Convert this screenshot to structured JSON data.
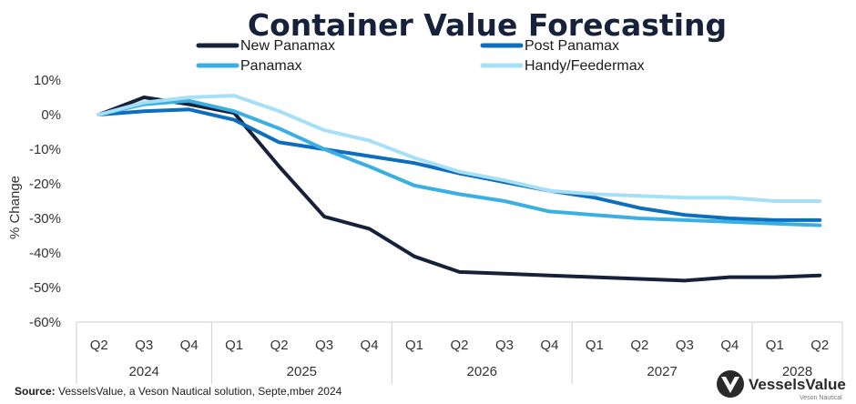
{
  "chart_data": {
    "type": "line",
    "title": "Container Value Forecasting",
    "ylabel": "% Change",
    "xlabel": "",
    "ylim": [
      -60,
      10
    ],
    "yticks": [
      10,
      0,
      -10,
      -20,
      -30,
      -40,
      -50,
      -60
    ],
    "y_tick_labels": [
      "10%",
      "0%",
      "-10%",
      "-20%",
      "-30%",
      "-40%",
      "-50%",
      "-60%"
    ],
    "categories": [
      "Q2",
      "Q3",
      "Q4",
      "Q1",
      "Q2",
      "Q3",
      "Q4",
      "Q1",
      "Q2",
      "Q3",
      "Q4",
      "Q1",
      "Q2",
      "Q3",
      "Q4",
      "Q1",
      "Q2"
    ],
    "years": [
      {
        "label": "2024",
        "start": 0,
        "end": 2
      },
      {
        "label": "2025",
        "start": 3,
        "end": 6
      },
      {
        "label": "2026",
        "start": 7,
        "end": 10
      },
      {
        "label": "2027",
        "start": 11,
        "end": 14
      },
      {
        "label": "2028",
        "start": 15,
        "end": 16
      }
    ],
    "legend_position": "top",
    "grid": false,
    "series": [
      {
        "name": "New Panamax",
        "color": "#16213a",
        "values": [
          0,
          5,
          3,
          0.5,
          -15,
          -29.5,
          -33,
          -41,
          -45.5,
          -46,
          -46.5,
          -47,
          -47.5,
          -48,
          -47,
          -47,
          -46.5
        ]
      },
      {
        "name": "Post Panamax",
        "color": "#0c6ebd",
        "values": [
          0,
          1,
          1.5,
          -1.5,
          -8,
          -10,
          -12,
          -14,
          -17,
          -19.5,
          -22,
          -24,
          -27,
          -29,
          -30,
          -30.5,
          -30.5
        ]
      },
      {
        "name": "Panamax",
        "color": "#3ab0e2",
        "values": [
          0,
          3,
          4,
          1,
          -4,
          -10,
          -15,
          -20.5,
          -23,
          -25,
          -28,
          -29,
          -30,
          -30.5,
          -31,
          -31.5,
          -32
        ]
      },
      {
        "name": "Handy/Feedermax",
        "color": "#a6e0f7",
        "values": [
          0,
          3.5,
          5,
          5.5,
          1,
          -4.5,
          -7.5,
          -12.5,
          -16.5,
          -19,
          -22,
          -23,
          -23.5,
          -24,
          -24,
          -25,
          -25
        ]
      }
    ]
  },
  "source": {
    "label": "Source:",
    "text": " VesselsValue, a Veson Nautical solution, Septe,mber 2024"
  },
  "logo": {
    "name": "VesselsValue",
    "sub": "Veson Nautical"
  }
}
